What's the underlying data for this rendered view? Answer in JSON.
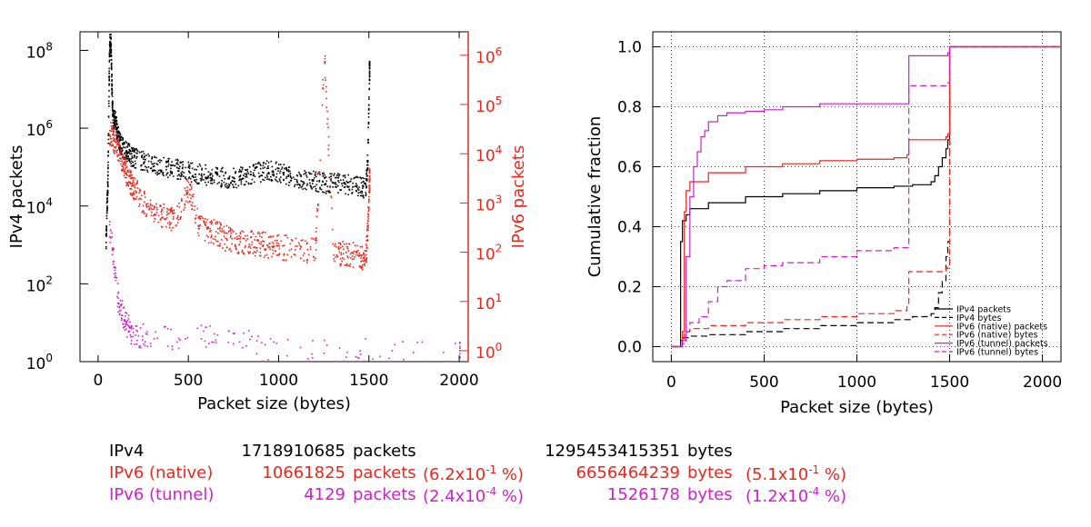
{
  "colors": {
    "ipv4": "#000000",
    "ipv6_native": "#e8281e",
    "ipv6_tunnel": "#cc22cc",
    "grid": "#000000",
    "background": "#ffffff"
  },
  "chart_data": [
    {
      "type": "scatter",
      "xlabel": "Packet size (bytes)",
      "ylabel_left": "IPv4 packets",
      "ylabel_right": "IPv6 packets",
      "xlim": [
        -100,
        2050
      ],
      "x_ticks": [
        0,
        500,
        1000,
        1500,
        2000
      ],
      "y_left": {
        "scale": "log",
        "range": [
          1,
          300000000
        ],
        "ticks": [
          {
            "v": 1,
            "base": "10",
            "exp": "0"
          },
          {
            "v": 100,
            "base": "10",
            "exp": "2"
          },
          {
            "v": 10000,
            "base": "10",
            "exp": "4"
          },
          {
            "v": 1000000,
            "base": "10",
            "exp": "6"
          },
          {
            "v": 100000000,
            "base": "10",
            "exp": "8"
          }
        ]
      },
      "y_right": {
        "scale": "log",
        "range": [
          0.6,
          3000000
        ],
        "ticks": [
          {
            "v": 1,
            "base": "10",
            "exp": "0"
          },
          {
            "v": 10,
            "base": "10",
            "exp": "1"
          },
          {
            "v": 100,
            "base": "10",
            "exp": "2"
          },
          {
            "v": 1000,
            "base": "10",
            "exp": "3"
          },
          {
            "v": 10000,
            "base": "10",
            "exp": "4"
          },
          {
            "v": 100000,
            "base": "10",
            "exp": "5"
          },
          {
            "v": 1000000,
            "base": "10",
            "exp": "6"
          }
        ]
      },
      "series": [
        {
          "key": "ipv4",
          "axis": "left",
          "x": [
            40,
            45,
            50,
            55,
            60,
            65,
            70,
            75,
            80,
            90,
            100,
            110,
            120,
            140,
            160,
            180,
            200,
            250,
            300,
            350,
            400,
            450,
            500,
            550,
            600,
            650,
            700,
            750,
            800,
            850,
            900,
            950,
            1000,
            1050,
            1100,
            1150,
            1200,
            1250,
            1300,
            1350,
            1400,
            1450,
            1480,
            1490,
            1500
          ],
          "y": [
            1000,
            8000,
            30000,
            2000000,
            100000000,
            300000000,
            60000000,
            5000000,
            1500000,
            2000000,
            1000000,
            600000,
            400000,
            300000,
            250000,
            200000,
            180000,
            150000,
            130000,
            110000,
            100000,
            90000,
            80000,
            70000,
            65000,
            60000,
            55000,
            55000,
            60000,
            70000,
            80000,
            85000,
            75000,
            65000,
            55000,
            50000,
            45000,
            40000,
            40000,
            38000,
            35000,
            32000,
            30000,
            150000,
            30000000
          ]
        },
        {
          "key": "ipv6_native",
          "axis": "right",
          "x": [
            60,
            80,
            100,
            120,
            140,
            160,
            180,
            200,
            250,
            300,
            350,
            400,
            450,
            500,
            550,
            600,
            650,
            700,
            750,
            800,
            850,
            900,
            950,
            1000,
            1100,
            1200,
            1250,
            1300,
            1350,
            1400,
            1450,
            1480,
            1490,
            1500
          ],
          "y": [
            30000,
            20000,
            15000,
            10000,
            6000,
            3000,
            2500,
            2000,
            1000,
            800,
            600,
            500,
            700,
            2000,
            400,
            300,
            250,
            200,
            180,
            170,
            160,
            150,
            140,
            130,
            120,
            110,
            1000000,
            100,
            95,
            90,
            85,
            80,
            300,
            3000
          ]
        },
        {
          "key": "ipv6_tunnel",
          "axis": "right",
          "x": [
            60,
            70,
            80,
            90,
            100,
            110,
            120,
            130,
            140,
            150,
            160,
            170,
            180,
            200,
            220,
            250,
            300,
            400,
            500,
            600,
            700,
            800,
            900,
            1000,
            1200,
            1400,
            1500,
            1700,
            2000
          ],
          "y": [
            300,
            200,
            100,
            40,
            20,
            10,
            8,
            6,
            5,
            4,
            3,
            3,
            2,
            2,
            2,
            2,
            2,
            2,
            2,
            2,
            2,
            2,
            1,
            1,
            1,
            1,
            1,
            1,
            1
          ]
        }
      ]
    },
    {
      "type": "line",
      "xlabel": "Packet size (bytes)",
      "ylabel": "Cumulative fraction",
      "xlim": [
        -100,
        2100
      ],
      "ylim": [
        -0.05,
        1.05
      ],
      "x_ticks": [
        0,
        500,
        1000,
        1500,
        2000
      ],
      "y_ticks": [
        "0.0",
        "0.2",
        "0.4",
        "0.6",
        "0.8",
        "1.0"
      ],
      "y_tick_values": [
        0.0,
        0.2,
        0.4,
        0.6,
        0.8,
        1.0
      ],
      "grid": true,
      "legend_position": "bottom-right",
      "series": [
        {
          "name": "IPv4 packets",
          "key": "ipv4",
          "dash": "solid",
          "x": [
            0,
            40,
            50,
            60,
            80,
            100,
            200,
            400,
            600,
            800,
            1000,
            1200,
            1300,
            1400,
            1420,
            1440,
            1460,
            1480,
            1490,
            1500,
            2100
          ],
          "y": [
            0,
            0,
            0.35,
            0.42,
            0.44,
            0.46,
            0.48,
            0.5,
            0.51,
            0.52,
            0.53,
            0.535,
            0.54,
            0.55,
            0.57,
            0.6,
            0.63,
            0.66,
            0.69,
            1.0,
            1.0
          ]
        },
        {
          "name": "IPv4 bytes",
          "key": "ipv4",
          "dash": "dashed",
          "x": [
            0,
            40,
            50,
            60,
            100,
            200,
            400,
            600,
            800,
            1000,
            1200,
            1300,
            1400,
            1420,
            1440,
            1460,
            1480,
            1490,
            1500,
            2100
          ],
          "y": [
            0,
            0,
            0.02,
            0.03,
            0.035,
            0.04,
            0.05,
            0.06,
            0.07,
            0.08,
            0.09,
            0.1,
            0.11,
            0.13,
            0.18,
            0.22,
            0.3,
            0.35,
            1.0,
            1.0
          ]
        },
        {
          "name": "IPv6 (native) packets",
          "key": "ipv6_native",
          "dash": "solid",
          "x": [
            0,
            60,
            70,
            80,
            100,
            200,
            400,
            600,
            800,
            1000,
            1200,
            1270,
            1280,
            1480,
            1490,
            1500,
            2100
          ],
          "y": [
            0,
            0.05,
            0.45,
            0.52,
            0.55,
            0.58,
            0.6,
            0.61,
            0.62,
            0.625,
            0.63,
            0.64,
            0.69,
            0.7,
            0.71,
            1.0,
            1.0
          ]
        },
        {
          "name": "IPv6 (native) bytes",
          "key": "ipv6_native",
          "dash": "dashed",
          "x": [
            0,
            60,
            70,
            100,
            200,
            400,
            600,
            800,
            1000,
            1200,
            1270,
            1280,
            1480,
            1490,
            1500,
            2100
          ],
          "y": [
            0,
            0.02,
            0.05,
            0.06,
            0.07,
            0.08,
            0.09,
            0.1,
            0.11,
            0.12,
            0.14,
            0.25,
            0.26,
            0.27,
            1.0,
            1.0
          ]
        },
        {
          "name": "IPv6 (tunnel) packets",
          "key": "ipv6_tunnel",
          "dash": "solid",
          "x": [
            0,
            60,
            80,
            100,
            120,
            140,
            160,
            180,
            200,
            250,
            300,
            400,
            500,
            600,
            800,
            1000,
            1200,
            1270,
            1280,
            1480,
            1490,
            1500,
            2100
          ],
          "y": [
            0,
            0.02,
            0.3,
            0.5,
            0.6,
            0.65,
            0.7,
            0.72,
            0.75,
            0.77,
            0.78,
            0.785,
            0.79,
            0.8,
            0.81,
            0.81,
            0.81,
            0.81,
            0.97,
            0.97,
            0.98,
            1.0,
            1.0
          ]
        },
        {
          "name": "IPv6 (tunnel) bytes",
          "key": "ipv6_tunnel",
          "dash": "dashed",
          "x": [
            0,
            60,
            80,
            100,
            150,
            200,
            250,
            300,
            400,
            500,
            600,
            800,
            1000,
            1200,
            1270,
            1280,
            1480,
            1490,
            1500,
            2100
          ],
          "y": [
            0,
            0.01,
            0.05,
            0.08,
            0.1,
            0.15,
            0.2,
            0.22,
            0.26,
            0.27,
            0.28,
            0.3,
            0.32,
            0.33,
            0.33,
            0.87,
            0.87,
            0.88,
            1.0,
            1.0
          ]
        }
      ]
    }
  ],
  "summary": {
    "rows": [
      {
        "key": "ipv4",
        "label": "IPv4",
        "packets": "1718910685",
        "packets_unit": "packets",
        "packets_pct": "",
        "bytes": "1295453415351",
        "bytes_unit": "bytes",
        "bytes_pct": ""
      },
      {
        "key": "ipv6_native",
        "label": "IPv6 (native)",
        "packets": "10661825",
        "packets_unit": "packets",
        "packets_pct": "(6.2x10",
        "packets_exp": "-1",
        "packets_pct_tail": " %)",
        "bytes": "6656464239",
        "bytes_unit": "bytes",
        "bytes_pct": "(5.1x10",
        "bytes_exp": "-1",
        "bytes_pct_tail": " %)"
      },
      {
        "key": "ipv6_tunnel",
        "label": "IPv6 (tunnel)",
        "packets": "4129",
        "packets_unit": "packets",
        "packets_pct": "(2.4x10",
        "packets_exp": "-4",
        "packets_pct_tail": " %)",
        "bytes": "1526178",
        "bytes_unit": "bytes",
        "bytes_pct": "(1.2x10",
        "bytes_exp": "-4",
        "bytes_pct_tail": " %)"
      }
    ]
  }
}
